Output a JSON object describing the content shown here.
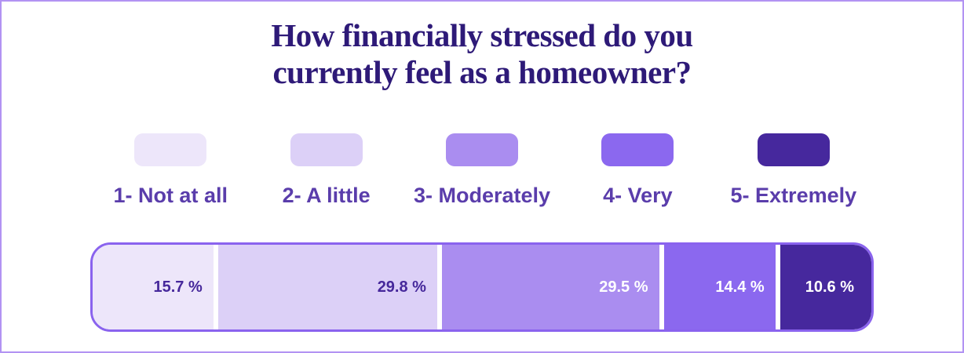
{
  "page": {
    "background": "#ffffff",
    "border_color": "#b293f3"
  },
  "title": {
    "text": "How financially stressed do you currently feel as a homeowner?",
    "line1": "How financially stressed do you",
    "line2": "currently feel as a homeowner?",
    "color": "#2e1a78"
  },
  "legend": {
    "label_color": "#5a3dab",
    "items": [
      {
        "label": "1- Not at all",
        "color": "#ede6fa"
      },
      {
        "label": "2- A little",
        "color": "#dcd0f7"
      },
      {
        "label": "3- Moderately",
        "color": "#aa8df0"
      },
      {
        "label": "4- Very",
        "color": "#8b68ef"
      },
      {
        "label": "5- Extremely",
        "color": "#46289d"
      }
    ]
  },
  "chart_data": {
    "type": "bar",
    "variant": "horizontal-stacked",
    "title": "How financially stressed do you currently feel as a homeowner?",
    "categories": [
      "1- Not at all",
      "2- A little",
      "3- Moderately",
      "4- Very",
      "5- Extremely"
    ],
    "values": [
      15.7,
      29.8,
      29.5,
      14.4,
      10.6
    ],
    "unit": "%",
    "xlim": [
      0,
      100
    ],
    "legend_position": "top",
    "bar_border_color": "#8a63ee",
    "separator_color": "#ffffff",
    "segments": [
      {
        "category": "1- Not at all",
        "value": 15.7,
        "label": "15.7 %",
        "color": "#ede6fa",
        "label_color": "#46289b"
      },
      {
        "category": "2- A little",
        "value": 29.8,
        "label": "29.8 %",
        "color": "#dcd0f7",
        "label_color": "#46289b"
      },
      {
        "category": "3- Moderately",
        "value": 29.5,
        "label": "29.5 %",
        "color": "#aa8df0",
        "label_color": "#ffffff"
      },
      {
        "category": "4- Very",
        "value": 14.4,
        "label": "14.4 %",
        "color": "#8b68ef",
        "label_color": "#ffffff"
      },
      {
        "category": "5- Extremely",
        "value": 10.6,
        "label": "10.6 %",
        "color": "#46289d",
        "label_color": "#ffffff"
      }
    ]
  }
}
